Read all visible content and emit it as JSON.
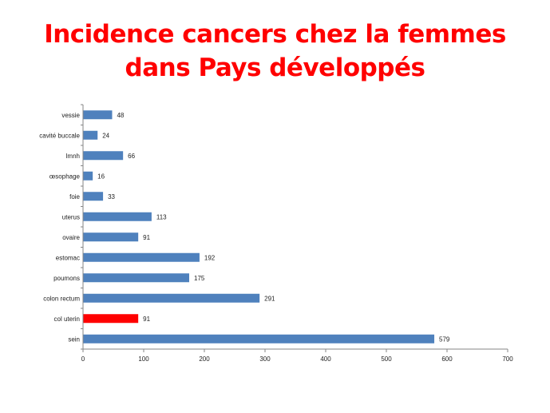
{
  "title_line1": "Incidence cancers chez la femmes",
  "title_line2": "dans Pays développés",
  "colors": {
    "title": "#ff0000",
    "bar": "#4f81bd",
    "highlight_bar": "#ff0000",
    "axis": "#868686"
  },
  "chart_data": {
    "type": "bar",
    "orientation": "horizontal",
    "categories": [
      "vessie",
      "cavité buccale",
      "lmnh",
      "œsophage",
      "foie",
      "uterus",
      "ovaire",
      "estomac",
      "poumons",
      "colon rectum",
      "col uterin",
      "sein"
    ],
    "values": [
      48,
      24,
      66,
      16,
      33,
      113,
      91,
      192,
      175,
      291,
      91,
      579
    ],
    "highlight_category": "col uterin",
    "xlim": [
      0,
      700
    ],
    "xticks": [
      0,
      100,
      200,
      300,
      400,
      500,
      600,
      700
    ],
    "data_labels": true,
    "grid": false,
    "legend": false
  }
}
